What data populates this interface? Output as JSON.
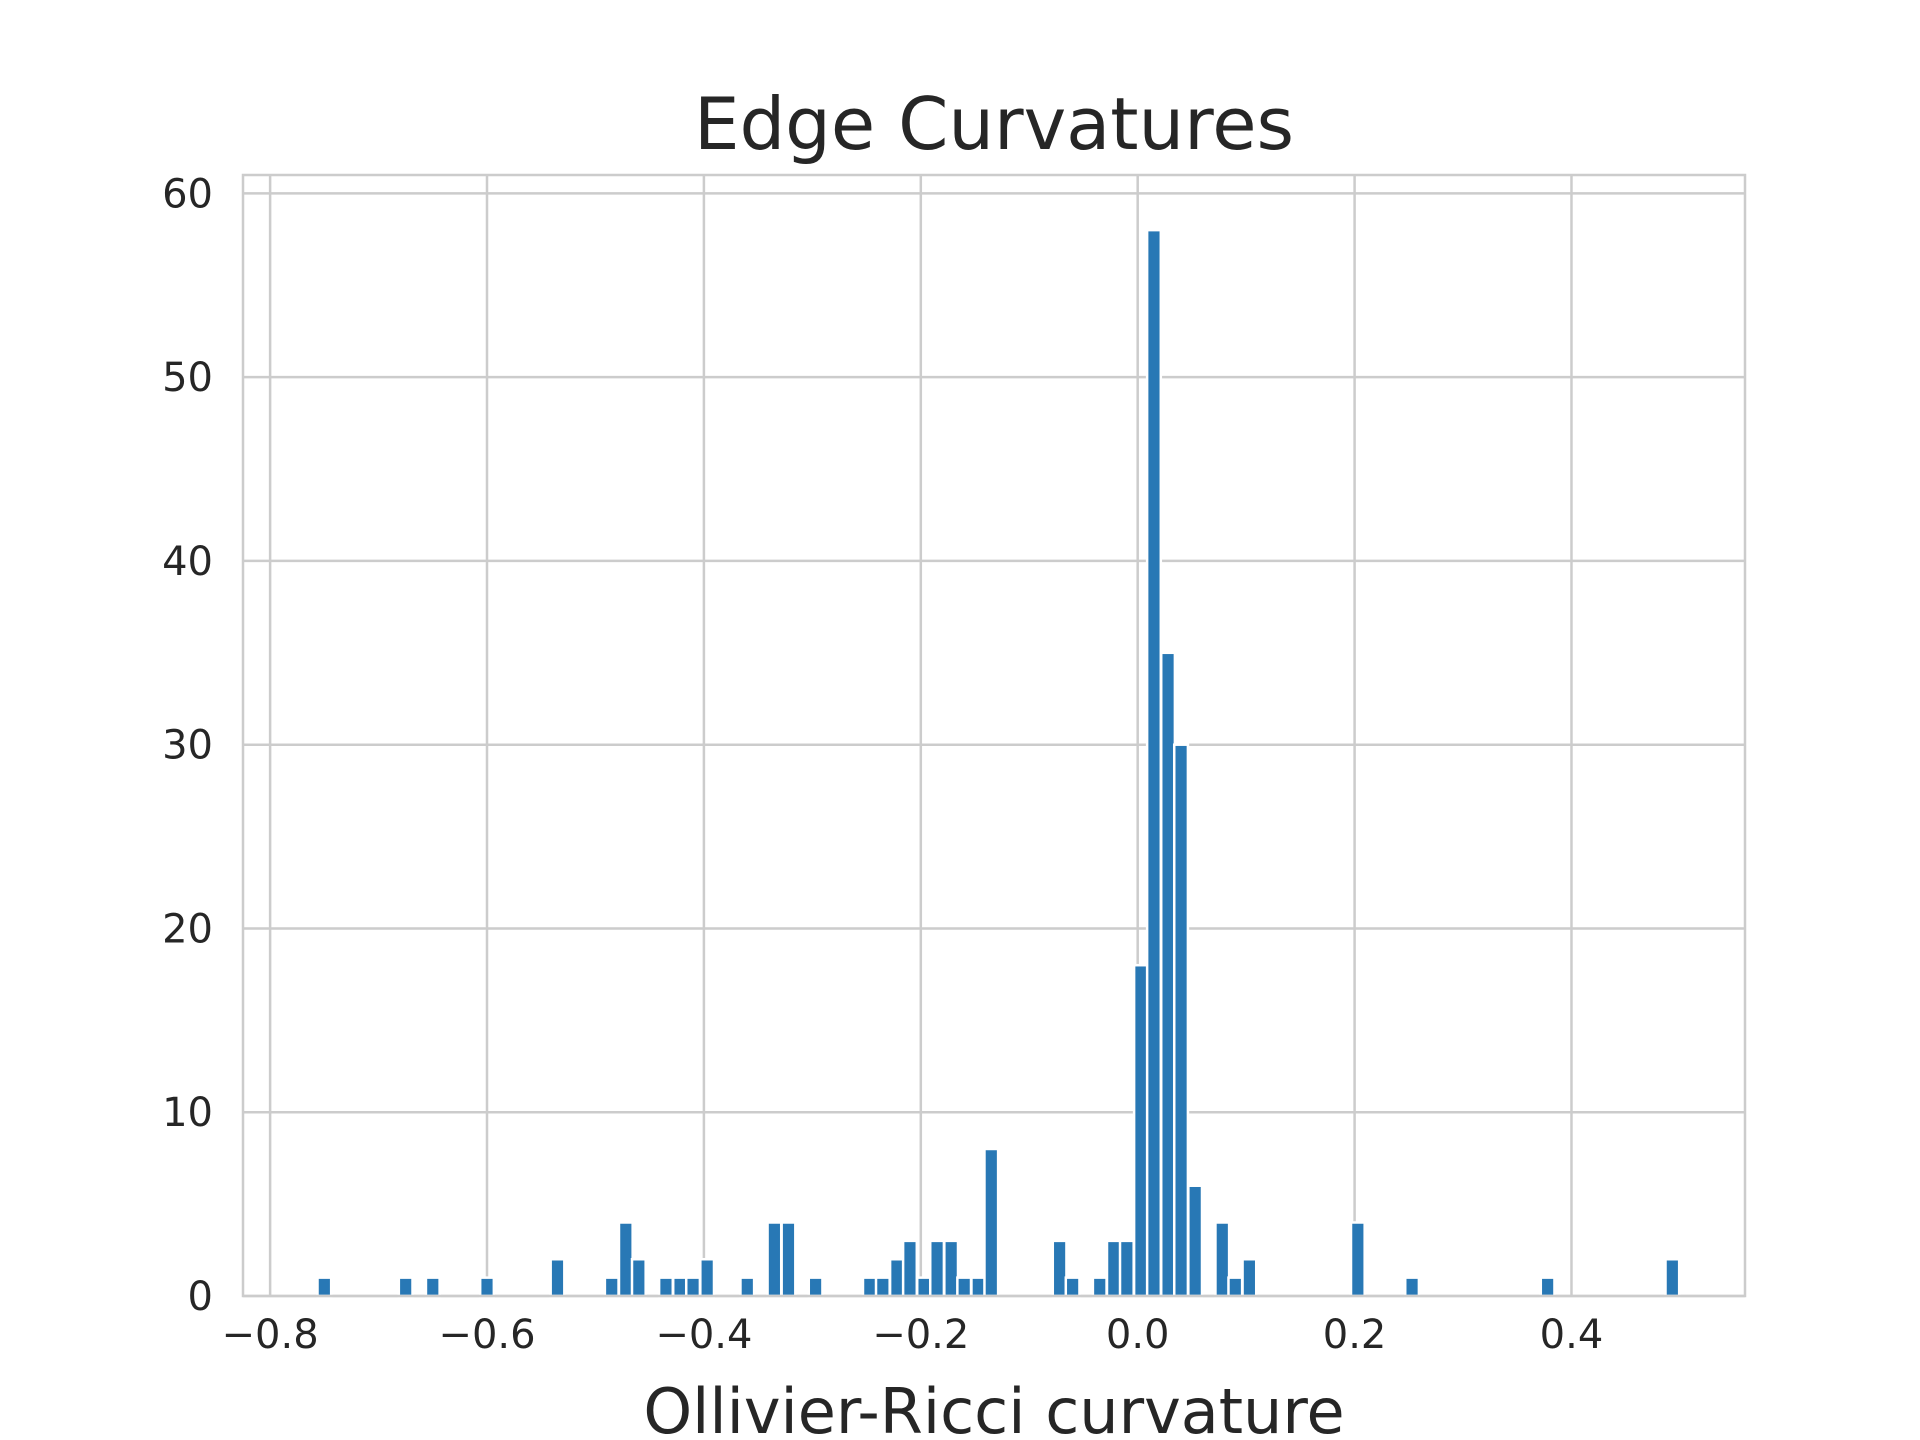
{
  "chart_data": {
    "type": "bar",
    "title": "Edge Curvatures",
    "xlabel": "Ollivier-Ricci curvature",
    "ylabel": "",
    "xlim": [
      -0.825,
      0.56
    ],
    "ylim": [
      0,
      61
    ],
    "grid": true,
    "bar_color": "#2878b5",
    "grid_color": "#cccccc",
    "frame_color": "#cccccc",
    "text_color": "#262626",
    "bin_width": 0.0126,
    "x_ticks": [
      -0.8,
      -0.6,
      -0.4,
      -0.2,
      0.0,
      0.2,
      0.4
    ],
    "x_tick_labels": [
      "−0.8",
      "−0.6",
      "−0.4",
      "−0.2",
      "0.0",
      "0.2",
      "0.4"
    ],
    "y_ticks": [
      0,
      10,
      20,
      30,
      40,
      50,
      60
    ],
    "y_tick_labels": [
      "0",
      "10",
      "20",
      "30",
      "40",
      "50",
      "60"
    ],
    "bins": [
      {
        "x": -0.75,
        "count": 1
      },
      {
        "x": -0.675,
        "count": 1
      },
      {
        "x": -0.65,
        "count": 1
      },
      {
        "x": -0.6,
        "count": 1
      },
      {
        "x": -0.535,
        "count": 2
      },
      {
        "x": -0.485,
        "count": 1
      },
      {
        "x": -0.472,
        "count": 4
      },
      {
        "x": -0.46,
        "count": 2
      },
      {
        "x": -0.435,
        "count": 1
      },
      {
        "x": -0.422,
        "count": 1
      },
      {
        "x": -0.41,
        "count": 1
      },
      {
        "x": -0.397,
        "count": 2
      },
      {
        "x": -0.36,
        "count": 1
      },
      {
        "x": -0.335,
        "count": 4
      },
      {
        "x": -0.322,
        "count": 4
      },
      {
        "x": -0.297,
        "count": 1
      },
      {
        "x": -0.247,
        "count": 1
      },
      {
        "x": -0.235,
        "count": 1
      },
      {
        "x": -0.222,
        "count": 2
      },
      {
        "x": -0.21,
        "count": 3
      },
      {
        "x": -0.197,
        "count": 1
      },
      {
        "x": -0.185,
        "count": 3
      },
      {
        "x": -0.172,
        "count": 3
      },
      {
        "x": -0.16,
        "count": 1
      },
      {
        "x": -0.147,
        "count": 1
      },
      {
        "x": -0.135,
        "count": 8
      },
      {
        "x": -0.072,
        "count": 3
      },
      {
        "x": -0.06,
        "count": 1
      },
      {
        "x": -0.035,
        "count": 1
      },
      {
        "x": -0.022,
        "count": 3
      },
      {
        "x": -0.01,
        "count": 3
      },
      {
        "x": 0.003,
        "count": 18
      },
      {
        "x": 0.015,
        "count": 58
      },
      {
        "x": 0.028,
        "count": 35
      },
      {
        "x": 0.04,
        "count": 30
      },
      {
        "x": 0.053,
        "count": 6
      },
      {
        "x": 0.078,
        "count": 4
      },
      {
        "x": 0.09,
        "count": 1
      },
      {
        "x": 0.103,
        "count": 2
      },
      {
        "x": 0.203,
        "count": 4
      },
      {
        "x": 0.253,
        "count": 1
      },
      {
        "x": 0.378,
        "count": 1
      },
      {
        "x": 0.493,
        "count": 2
      }
    ]
  }
}
